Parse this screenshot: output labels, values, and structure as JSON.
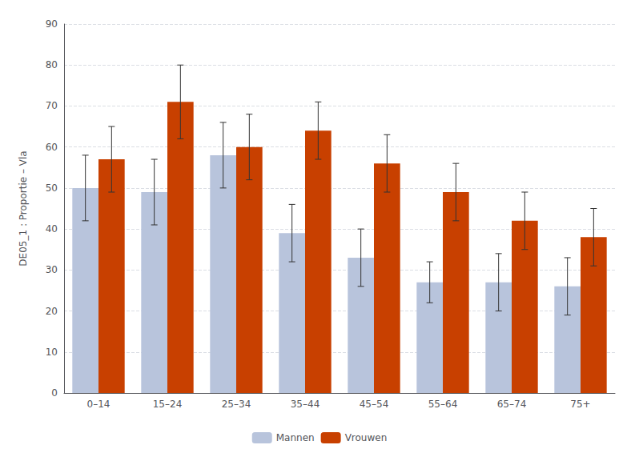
{
  "chart_data": {
    "type": "bar",
    "ylabel": "DE05_1 : Proportie – Vla",
    "categories": [
      "0–14",
      "15–24",
      "25–34",
      "35–44",
      "45–54",
      "55–64",
      "65–74",
      "75+"
    ],
    "series": [
      {
        "name": "Mannen",
        "color": "#b8c4dc",
        "values": [
          50,
          49,
          58,
          39,
          33,
          27,
          27,
          26
        ],
        "error_low": [
          8,
          8,
          8,
          7,
          7,
          5,
          7,
          7
        ],
        "error_high": [
          8,
          8,
          8,
          7,
          7,
          5,
          7,
          7
        ]
      },
      {
        "name": "Vrouwen",
        "color": "#c84000",
        "values": [
          57,
          71,
          60,
          64,
          56,
          49,
          42,
          38
        ],
        "error_low": [
          8,
          9,
          8,
          7,
          7,
          7,
          7,
          7
        ],
        "error_high": [
          8,
          9,
          8,
          7,
          7,
          7,
          7,
          7
        ]
      }
    ],
    "ylim": [
      0,
      90
    ],
    "yticks": [
      0,
      10,
      20,
      30,
      40,
      50,
      60,
      70,
      80,
      90
    ],
    "grid": true,
    "legend": "bottom"
  }
}
